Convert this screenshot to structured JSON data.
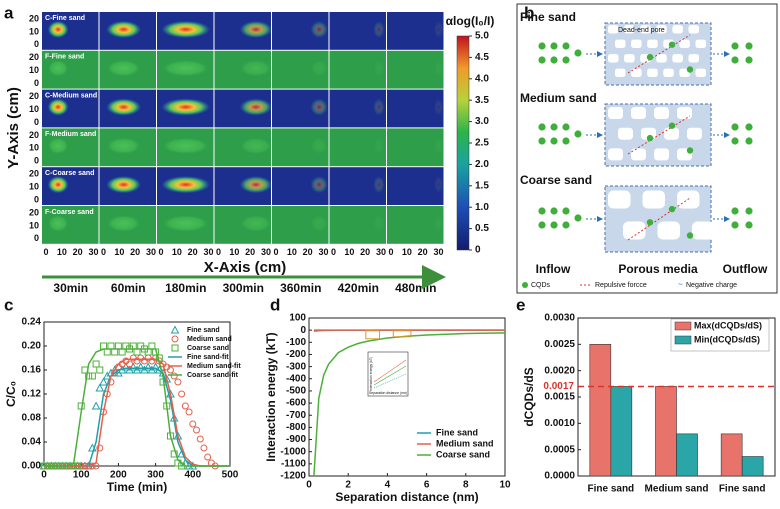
{
  "panel_a": {
    "label": "a",
    "row_labels": [
      "C-Fine sand",
      "F-Fine sand",
      "C-Medium sand",
      "F-Medium sand",
      "C-Coarse sand",
      "F-Coarse sand"
    ],
    "y_ticks": [
      0,
      10,
      20
    ],
    "x_ticks": [
      0,
      10,
      20,
      30
    ],
    "y_axis_label": "Y-Axis (cm)",
    "x_axis_label": "X-Axis (cm)",
    "times": [
      "30min",
      "60min",
      "180min",
      "300min",
      "360min",
      "420min",
      "480min"
    ],
    "colorbar": {
      "title": "αlog(I₀/I)",
      "lim": [
        0,
        5
      ],
      "ticks": [
        {
          "value": 5,
          "label": "5.0"
        },
        4.5,
        {
          "value": 4,
          "label": "4.0"
        },
        3.5,
        {
          "value": 3,
          "label": "3.0"
        },
        2.5,
        {
          "value": 2,
          "label": "2.0"
        },
        1.5,
        {
          "value": 1,
          "label": "1.0"
        },
        0.5,
        0
      ]
    }
  },
  "panel_b": {
    "label": "b",
    "rows": [
      "Fine sand",
      "Medium sand",
      "Coarse sand"
    ],
    "pore_note": "Dead-end pore",
    "columns": [
      "Inflow",
      "Porous media",
      "Outflow"
    ],
    "legend": [
      "CQDs",
      "Repulsive forcce",
      "Negative charge"
    ]
  },
  "chart_data": [
    {
      "type": "scatter",
      "label": "c",
      "xlabel": "Time (min)",
      "ylabel": "C/C₀",
      "xlim": [
        0,
        500
      ],
      "ylim": [
        0,
        0.24
      ],
      "xticks": [
        0,
        100,
        200,
        300,
        400,
        500
      ],
      "yticks": [
        0.24,
        {
          "value": 0.2,
          "label": "0.20"
        },
        0.16,
        0.12,
        0.08,
        0.04,
        {
          "value": 0,
          "label": "0.00"
        }
      ],
      "legend": "upper right",
      "series": [
        {
          "name": "Fine sand",
          "color": "#1fa0a8",
          "marker": "triangle",
          "x": [
            0,
            10,
            20,
            30,
            40,
            50,
            60,
            70,
            80,
            90,
            100,
            110,
            120,
            130,
            140,
            150,
            160,
            170,
            180,
            190,
            200,
            210,
            220,
            230,
            240,
            250,
            260,
            270,
            280,
            290,
            300,
            310,
            320,
            330,
            340,
            350,
            360,
            370,
            380,
            390,
            400
          ],
          "values": [
            0,
            0,
            0,
            0,
            0,
            0,
            0,
            0,
            0,
            0,
            0,
            0,
            0,
            0.03,
            0.1,
            0.13,
            0.14,
            0.15,
            0.155,
            0.16,
            0.155,
            0.16,
            0.165,
            0.16,
            0.165,
            0.16,
            0.165,
            0.16,
            0.165,
            0.16,
            0.165,
            0.16,
            0.155,
            0.145,
            0.12,
            0.08,
            0.05,
            0.02,
            0.005,
            0,
            0
          ]
        },
        {
          "name": "Medium sand",
          "color": "#e5604c",
          "marker": "circle",
          "x": [
            0,
            10,
            20,
            30,
            40,
            50,
            60,
            70,
            80,
            90,
            100,
            110,
            120,
            130,
            140,
            150,
            160,
            170,
            180,
            190,
            200,
            210,
            220,
            230,
            240,
            250,
            260,
            270,
            280,
            290,
            300,
            310,
            320,
            330,
            340,
            350,
            360,
            370,
            380,
            390,
            400,
            410,
            420,
            430,
            440,
            450,
            460
          ],
          "values": [
            0,
            0,
            0,
            0,
            0,
            0,
            0,
            0,
            0,
            0,
            0,
            0,
            0,
            0,
            0,
            0.03,
            0.09,
            0.12,
            0.14,
            0.155,
            0.165,
            0.17,
            0.175,
            0.17,
            0.18,
            0.175,
            0.18,
            0.175,
            0.18,
            0.175,
            0.18,
            0.175,
            0.17,
            0.165,
            0.16,
            0.15,
            0.14,
            0.12,
            0.1,
            0.09,
            0.07,
            0.06,
            0.045,
            0.03,
            0.015,
            0.005,
            0
          ]
        },
        {
          "name": "Coarse sand",
          "color": "#4caf3a",
          "marker": "square",
          "x": [
            0,
            10,
            20,
            30,
            40,
            50,
            60,
            70,
            80,
            90,
            100,
            110,
            120,
            130,
            140,
            150,
            160,
            170,
            180,
            190,
            200,
            210,
            220,
            230,
            240,
            250,
            260,
            270,
            280,
            290,
            300,
            310,
            320,
            330,
            340,
            350,
            360,
            370
          ],
          "values": [
            0,
            0,
            0,
            0,
            0,
            0,
            0,
            0,
            0,
            0,
            0.1,
            0.16,
            0.15,
            0.15,
            0.17,
            0.16,
            0.2,
            0.19,
            0.2,
            0.19,
            0.2,
            0.19,
            0.2,
            0.195,
            0.2,
            0.19,
            0.2,
            0.195,
            0.19,
            0.2,
            0.19,
            0.18,
            0.14,
            0.1,
            0.05,
            0.02,
            0.005,
            0
          ]
        },
        {
          "name": "Fine sand-fit",
          "color": "#1fa0a8",
          "x": [
            0,
            20,
            40,
            60,
            80,
            100,
            120,
            140,
            160,
            180,
            200,
            220,
            240,
            260,
            280,
            300,
            320,
            340,
            360,
            380,
            400,
            420,
            440,
            460,
            480,
            500
          ],
          "values": [
            0,
            0,
            0,
            0,
            0,
            0,
            0,
            0.04,
            0.12,
            0.15,
            0.16,
            0.163,
            0.163,
            0.163,
            0.163,
            0.163,
            0.155,
            0.11,
            0.04,
            0.01,
            0,
            0,
            0,
            0,
            0,
            0
          ]
        },
        {
          "name": "Medium sand-fit",
          "color": "#e5604c",
          "x": [
            0,
            20,
            40,
            60,
            80,
            100,
            120,
            140,
            160,
            180,
            200,
            220,
            240,
            260,
            280,
            300,
            320,
            340,
            360,
            380,
            400,
            420,
            440,
            460,
            480,
            500
          ],
          "values": [
            0,
            0,
            0,
            0,
            0,
            0,
            0,
            0.005,
            0.09,
            0.15,
            0.17,
            0.178,
            0.178,
            0.178,
            0.178,
            0.178,
            0.17,
            0.12,
            0.05,
            0.015,
            0.003,
            0,
            0,
            0,
            0,
            0
          ]
        },
        {
          "name": "Coarse sand-fit",
          "color": "#4caf3a",
          "x": [
            0,
            20,
            40,
            60,
            80,
            100,
            120,
            140,
            160,
            180,
            200,
            220,
            240,
            260,
            280,
            300,
            320,
            340,
            360,
            380,
            400,
            420,
            440,
            460,
            480,
            500
          ],
          "values": [
            0,
            0,
            0,
            0,
            0.005,
            0.09,
            0.17,
            0.19,
            0.195,
            0.195,
            0.195,
            0.195,
            0.195,
            0.195,
            0.195,
            0.195,
            0.15,
            0.05,
            0.01,
            0,
            0,
            0,
            0,
            0,
            0,
            0
          ]
        }
      ]
    },
    {
      "type": "line",
      "label": "d",
      "xlabel": "Separation distance (nm)",
      "ylabel": "Interaction energy (kT)",
      "xlim": [
        0,
        10
      ],
      "ylim": [
        -1200,
        100
      ],
      "xticks": [
        0,
        2,
        4,
        6,
        8,
        10
      ],
      "yticks": [
        100,
        0,
        -100,
        -200,
        -300,
        -400,
        -500,
        -600,
        -700,
        -800,
        -900,
        -1000,
        -1100,
        -1200
      ],
      "legend": "lower right",
      "inset": {
        "xlabel": "Separation distance (nm)",
        "ylabel": "Interaction energy (kT)"
      },
      "series": [
        {
          "name": "Fine sand",
          "color": "#1fa0a8",
          "x": [
            0.25,
            0.5,
            0.75,
            1,
            1.5,
            2,
            2.5,
            3,
            4,
            5,
            6,
            8,
            10
          ],
          "values": [
            -8,
            -4,
            -3,
            -2,
            -1,
            -1,
            -1,
            -1,
            0,
            0,
            0,
            0,
            0
          ]
        },
        {
          "name": "Medium sand",
          "color": "#e5604c",
          "x": [
            0.25,
            0.5,
            0.75,
            1,
            1.5,
            2,
            2.5,
            3,
            4,
            5,
            6,
            8,
            10
          ],
          "values": [
            0,
            0,
            0,
            0,
            0,
            0,
            0,
            0,
            0,
            0,
            0,
            0,
            0
          ]
        },
        {
          "name": "Coarse sand",
          "color": "#4caf3a",
          "x": [
            0.25,
            0.5,
            0.75,
            1,
            1.5,
            2,
            2.5,
            3,
            4,
            5,
            6,
            8,
            10
          ],
          "values": [
            -1200,
            -560,
            -370,
            -280,
            -185,
            -140,
            -110,
            -90,
            -65,
            -50,
            -40,
            -28,
            -22
          ]
        }
      ]
    },
    {
      "type": "bar",
      "label": "e",
      "ylabel": "dCQDs/dS",
      "categories": [
        "Fine sand",
        "Medium sand",
        "Fine sand"
      ],
      "ylim": [
        0,
        0.003
      ],
      "yticks": [
        {
          "value": 0,
          "label": "0.0000"
        },
        0.0005,
        {
          "value": 0.001,
          "label": "0.0010"
        },
        0.0015,
        {
          "value": 0.002,
          "label": "0.0020"
        },
        0.0025,
        {
          "value": 0.003,
          "label": "0.0030"
        }
      ],
      "threshold": 0.0017,
      "threshold_color": "#d9342b",
      "legend": "upper right",
      "series": [
        {
          "name": "Max(dCQDs/dS)",
          "color": "#e8736a",
          "values": [
            0.0025,
            0.0017,
            0.0008
          ]
        },
        {
          "name": "Min(dCQDs/dS)",
          "color": "#2aa5a8",
          "values": [
            0.0017,
            0.0008,
            0.00037
          ]
        }
      ]
    }
  ]
}
